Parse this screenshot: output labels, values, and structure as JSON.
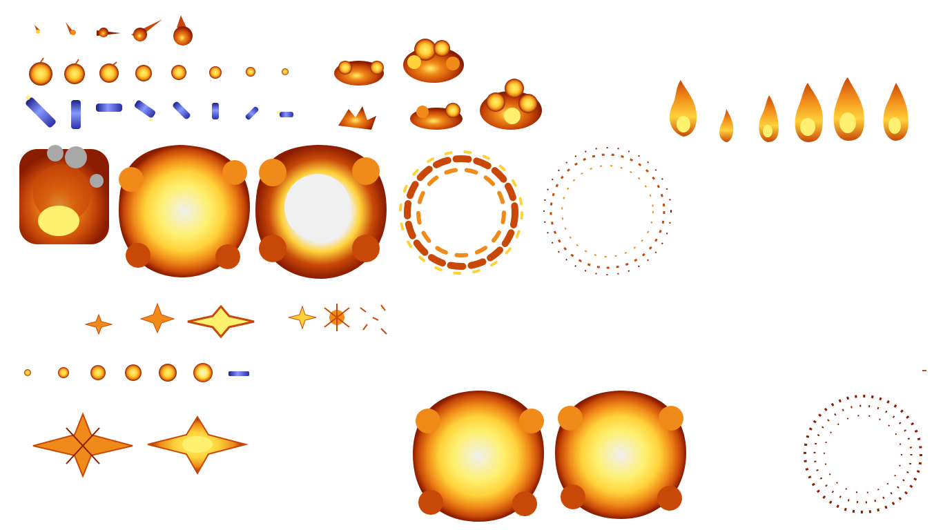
{
  "palette": {
    "background": "#ffffff",
    "core": "#f0f0f0",
    "bright_yellow": "#fff070",
    "yellow": "#ffd23a",
    "orange": "#f08a18",
    "red_orange": "#c84808",
    "dark_red": "#8a1c00",
    "blue": "#3a40c8",
    "blue_light": "#8898ff",
    "smoke": "#a8a8a8"
  },
  "sprite_groups": [
    {
      "id": "comet-trail",
      "icon": "small-fireball-comet",
      "frames": 5
    },
    {
      "id": "bomb-shrink",
      "icon": "round-bomb",
      "frames": 8
    },
    {
      "id": "dynamite-spin",
      "icon": "blue-dynamite-stick",
      "frames": 8
    },
    {
      "id": "small-smoke-burst",
      "icon": "fire-cloud",
      "frames": 5
    },
    {
      "id": "flame-column",
      "icon": "flame",
      "frames": 6
    },
    {
      "id": "large-explosion",
      "icon": "explosion-ball",
      "frames": 5
    },
    {
      "id": "spark-flash",
      "icon": "four-point-spark",
      "frames": 6
    },
    {
      "id": "orb-grow",
      "icon": "fire-orb",
      "frames": 7
    },
    {
      "id": "flare-burst",
      "icon": "star-flare",
      "frames": 2
    },
    {
      "id": "big-explosion-pair",
      "icon": "explosion-ball",
      "frames": 2
    },
    {
      "id": "debris-ring",
      "icon": "scattered-particles",
      "frames": 1
    }
  ]
}
